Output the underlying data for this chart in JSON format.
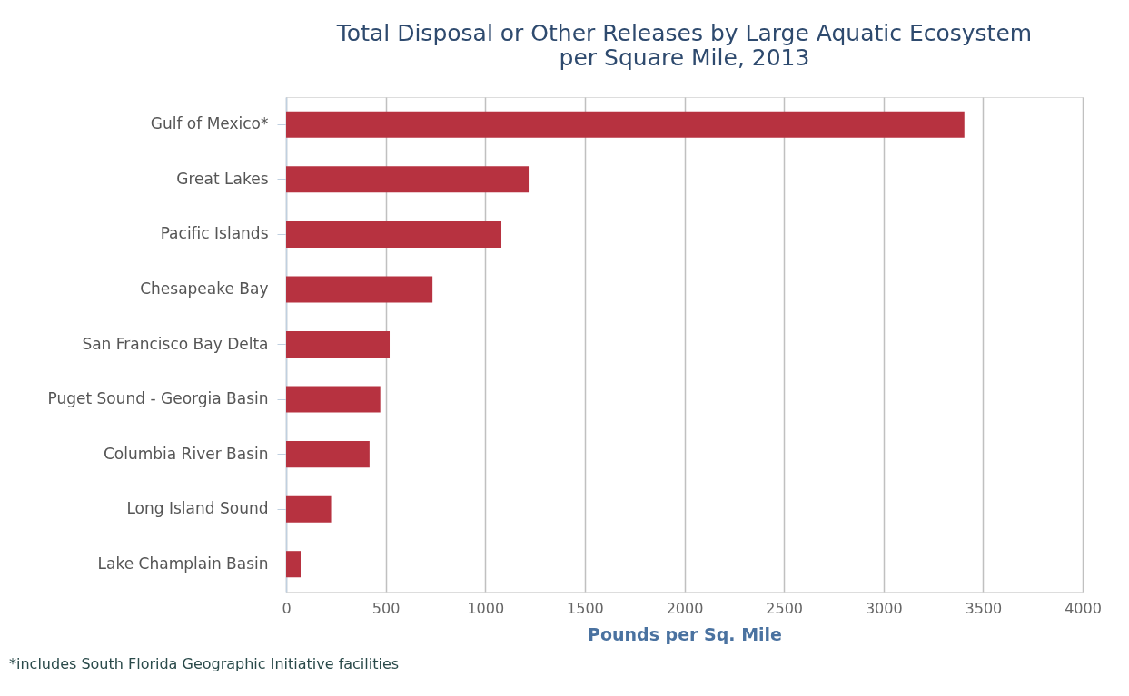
{
  "chart_data": {
    "type": "bar",
    "orientation": "horizontal",
    "title": [
      "Total Disposal or Other Releases by Large Aquatic Ecosystem",
      "per Square Mile, 2013"
    ],
    "xlabel": "Pounds per Sq. Mile",
    "categories": [
      "Gulf of Mexico*",
      "Great Lakes",
      "Pacific Islands",
      "Chesapeake Bay",
      "San Francisco Bay Delta",
      "Puget Sound - Georgia Basin",
      "Columbia River Basin",
      "Long Island Sound",
      "Lake Champlain Basin"
    ],
    "values": [
      3406,
      1218,
      1081,
      735,
      520,
      473,
      419,
      226,
      73
    ],
    "color": "#b73240",
    "xlim": [
      0,
      4000
    ],
    "xticks": [
      0,
      500,
      1000,
      1500,
      2000,
      2500,
      3000,
      3500,
      4000
    ],
    "grid": "x",
    "annotations": [
      "*includes South Florida Geographic Initiative facilities"
    ]
  }
}
